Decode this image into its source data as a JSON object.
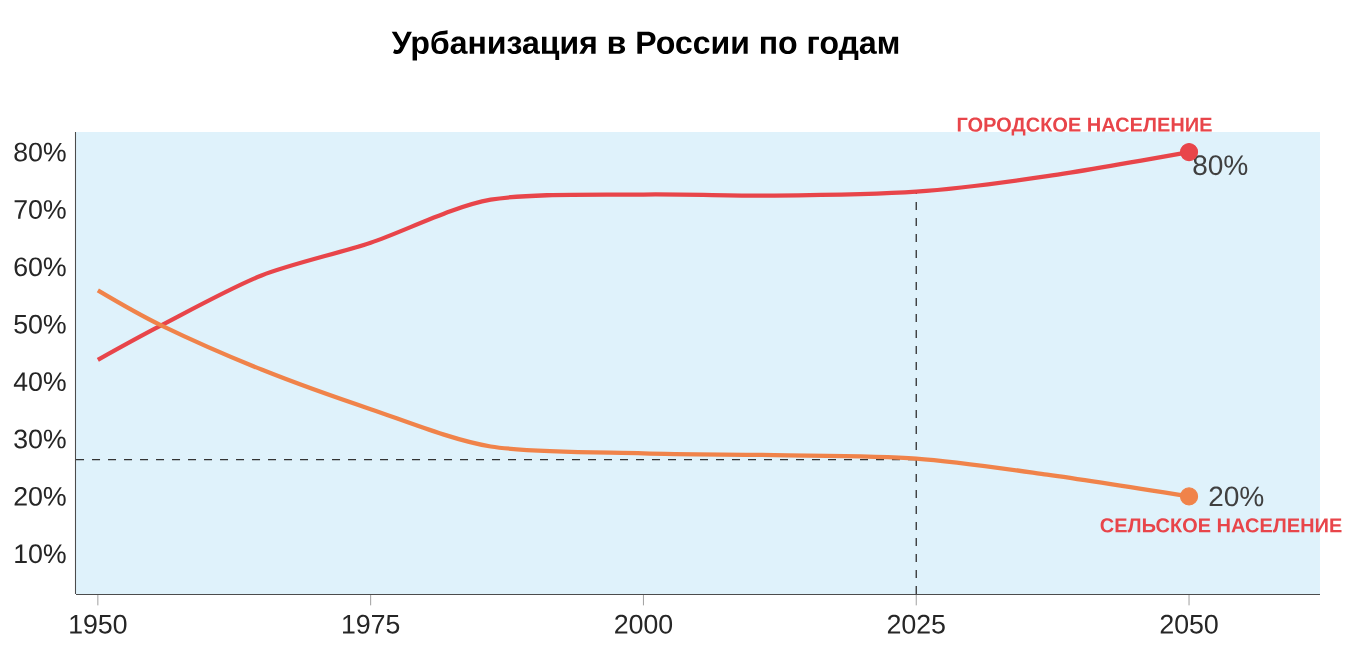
{
  "chart_data": {
    "type": "line",
    "title": "Урбанизация в России по годам",
    "x": [
      1950,
      1955.8,
      1965,
      1975,
      1986,
      2000,
      2012,
      2025,
      2037,
      2050
    ],
    "series": [
      {
        "name": "ГОРОДСКОЕ НАСЕЛЕНИЕ",
        "color": "#e8454a",
        "values": [
          43.8,
          49.8,
          58.5,
          64.2,
          71.7,
          72.6,
          72.4,
          73.1,
          75.8,
          80
        ],
        "value_labels": [
          null,
          null,
          null,
          null,
          null,
          null,
          null,
          null,
          null,
          "80%"
        ]
      },
      {
        "name": "СЕЛЬСКОЕ НАСЕЛЕНИЕ",
        "color": "#f0834a",
        "values": [
          55.9,
          49.8,
          42.1,
          35.2,
          28.7,
          27.5,
          27.2,
          26.6,
          23.8,
          20
        ],
        "value_labels": [
          null,
          null,
          null,
          null,
          null,
          null,
          null,
          null,
          null,
          "20%"
        ]
      }
    ],
    "xlim": [
      1948,
      2062
    ],
    "ylim": [
      3,
      83.5
    ],
    "xticks": [
      1950,
      1975,
      2000,
      2025,
      2050
    ],
    "yticks": [
      {
        "value": 10,
        "label": "10%"
      },
      {
        "value": 20,
        "label": "20%"
      },
      {
        "value": 30,
        "label": "30%"
      },
      {
        "value": 40,
        "label": "40%"
      },
      {
        "value": 50,
        "label": "50%"
      },
      {
        "value": 60,
        "label": "60%"
      },
      {
        "value": 70,
        "label": "70%"
      },
      {
        "value": 80,
        "label": "80%"
      }
    ],
    "ref_lines": [
      {
        "axis": "y",
        "value": 26.4,
        "line_style": "dashed",
        "color": "#333333"
      },
      {
        "axis": "x",
        "value": 2025,
        "line_style": "dashed",
        "color": "#333333"
      }
    ]
  }
}
